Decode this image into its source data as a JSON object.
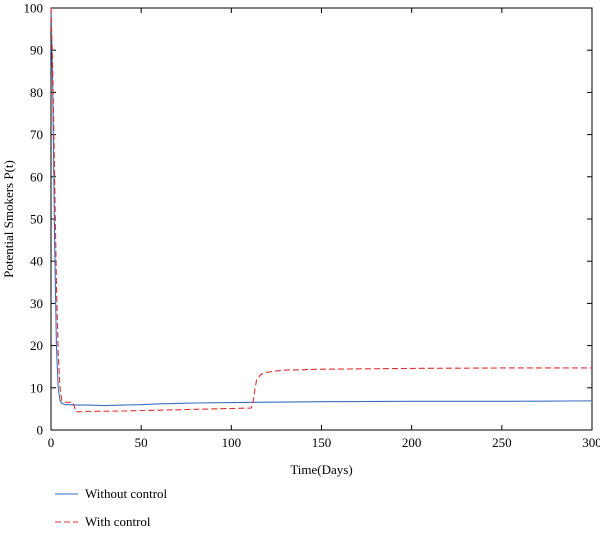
{
  "chart_data": {
    "type": "line",
    "xlabel": "Time(Days)",
    "ylabel": "Potential Smokers P(t)",
    "xlim": [
      0,
      300
    ],
    "ylim": [
      0,
      100
    ],
    "xticks": [
      0,
      50,
      100,
      150,
      200,
      250,
      300
    ],
    "yticks": [
      0,
      10,
      20,
      30,
      40,
      50,
      60,
      70,
      80,
      90,
      100
    ],
    "grid": false,
    "legend_position": "bottom-left, below plot",
    "series": [
      {
        "name": "Without control",
        "color": "#3a6fc4",
        "style": "solid",
        "x": [
          0,
          1,
          2,
          3,
          4,
          5,
          6,
          8,
          10,
          15,
          20,
          30,
          40,
          50,
          60,
          70,
          80,
          100,
          120,
          150,
          200,
          250,
          300
        ],
        "y": [
          100,
          80,
          45,
          20,
          10,
          7,
          6.3,
          6.0,
          6.0,
          5.9,
          5.9,
          5.8,
          5.9,
          6.0,
          6.2,
          6.3,
          6.4,
          6.5,
          6.6,
          6.7,
          6.8,
          6.8,
          6.9
        ]
      },
      {
        "name": "With control",
        "color": "#e03030",
        "style": "dashed",
        "x": [
          0,
          1,
          2,
          3,
          4,
          5,
          6,
          8,
          12,
          13,
          14,
          20,
          40,
          60,
          80,
          100,
          111,
          112,
          113,
          114,
          116,
          118,
          120,
          125,
          130,
          150,
          200,
          250,
          300
        ],
        "y": [
          100,
          85,
          60,
          35,
          18,
          10,
          7,
          6.6,
          6.5,
          5.5,
          4.3,
          4.4,
          4.5,
          4.7,
          4.9,
          5.1,
          5.2,
          6.5,
          9.5,
          11.8,
          13.0,
          13.5,
          13.7,
          14.0,
          14.2,
          14.4,
          14.6,
          14.7,
          14.7
        ]
      }
    ]
  }
}
